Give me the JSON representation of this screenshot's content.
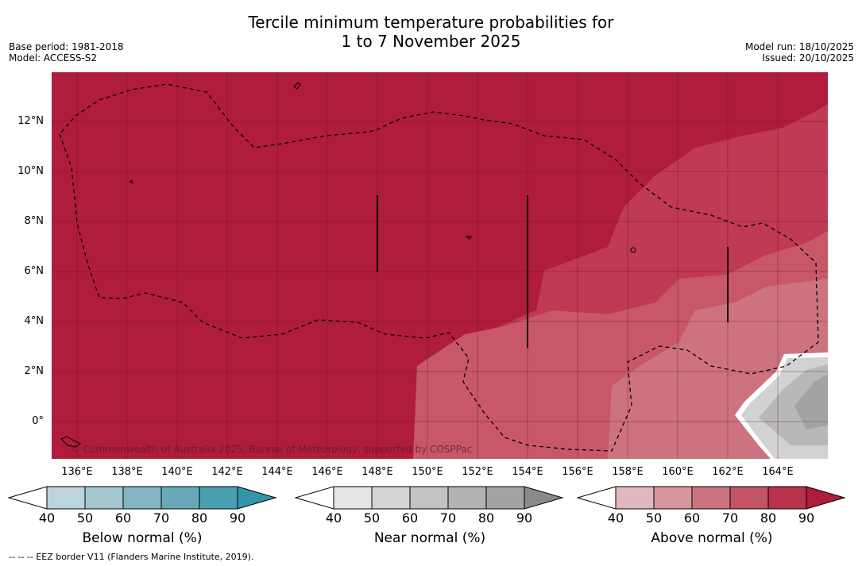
{
  "title_line1": "Tercile minimum temperature probabilities for",
  "title_line2": "1 to 7 November 2025",
  "base_period": "Base period: 1981-2018",
  "model": "Model: ACCESS-S2",
  "model_run": "Model run: 18/10/2025",
  "issued": "Issued: 20/10/2025",
  "credit": "© Commonwealth of Australia 2025, Bureau of Meteorology, supported by COSPPac",
  "footnote": "--  --  -- EEZ border V11 (Flanders Marine Institute, 2019).",
  "lat_labels": [
    "12°N",
    "10°N",
    "8°N",
    "6°N",
    "4°N",
    "2°N",
    "0°"
  ],
  "lon_labels": [
    "136°E",
    "138°E",
    "140°E",
    "142°E",
    "144°E",
    "146°E",
    "148°E",
    "150°E",
    "152°E",
    "154°E",
    "156°E",
    "158°E",
    "160°E",
    "162°E",
    "164°E"
  ],
  "colorbars": [
    {
      "name": "below",
      "title": "Below normal (%)",
      "ticks": [
        "40",
        "50",
        "60",
        "70",
        "80",
        "90"
      ],
      "colors": [
        "#bcd4dc",
        "#a4c6cf",
        "#86b5c2",
        "#68a8b8",
        "#47a0b0",
        "#3396a8"
      ]
    },
    {
      "name": "near",
      "title": "Near normal (%)",
      "ticks": [
        "40",
        "50",
        "60",
        "70",
        "80",
        "90"
      ],
      "colors": [
        "#e6e6e6",
        "#d4d4d4",
        "#c3c3c3",
        "#b3b3b3",
        "#a3a3a3",
        "#8a8a8a"
      ]
    },
    {
      "name": "above",
      "title": "Above normal (%)",
      "ticks": [
        "40",
        "50",
        "60",
        "70",
        "80",
        "90"
      ],
      "colors": [
        "#e2b7bd",
        "#d8969f",
        "#cd737f",
        "#c25464",
        "#b8334b",
        "#b01c3c"
      ]
    }
  ],
  "colors": {
    "dominant": "#b01c3c",
    "above80": "#bf3a52",
    "above70": "#c85868",
    "above60": "#cd737f",
    "near_light": "#d2d2d2",
    "near_mid": "#b8b8b8",
    "near_dark": "#a3a3a3"
  }
}
